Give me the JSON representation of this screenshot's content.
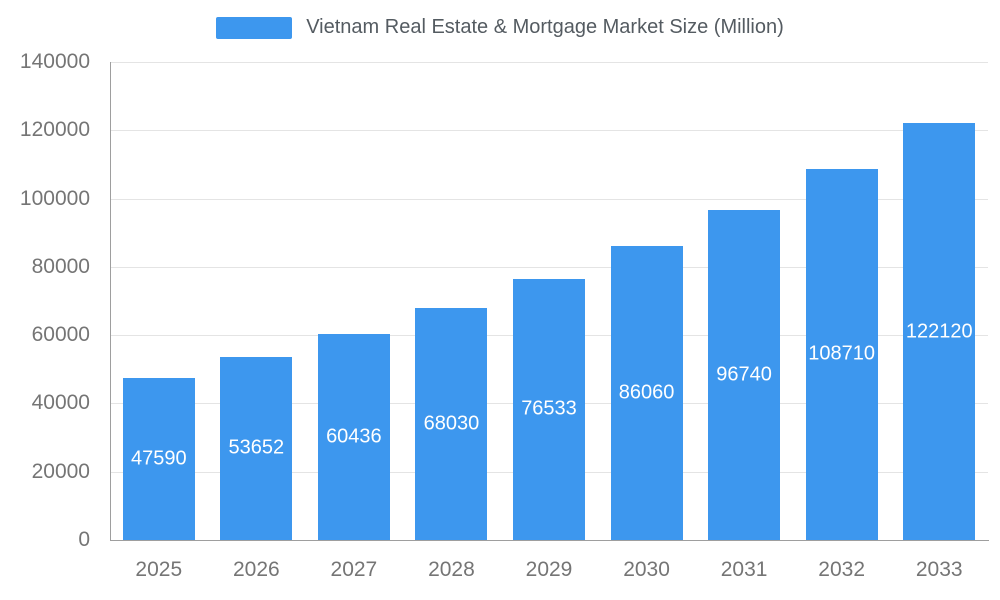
{
  "chart_data": {
    "type": "bar",
    "title": "Vietnam Real Estate & Mortgage Market Size (Million)",
    "categories": [
      "2025",
      "2026",
      "2027",
      "2028",
      "2029",
      "2030",
      "2031",
      "2032",
      "2033"
    ],
    "values": [
      47590,
      53652,
      60436,
      68030,
      76533,
      86060,
      96740,
      108710,
      122120
    ],
    "xlabel": "",
    "ylabel": "",
    "ylim": [
      0,
      140000
    ],
    "ytick_step": 20000,
    "ytick_labels": [
      "0",
      "20000",
      "40000",
      "60000",
      "80000",
      "100000",
      "120000",
      "140000"
    ],
    "grid": true,
    "legend_position": "top",
    "bar_color": "#3d97ee",
    "value_label_color": "#ffffff",
    "axis_text_color": "#757575",
    "gridline_color": "#e4e4e4"
  }
}
